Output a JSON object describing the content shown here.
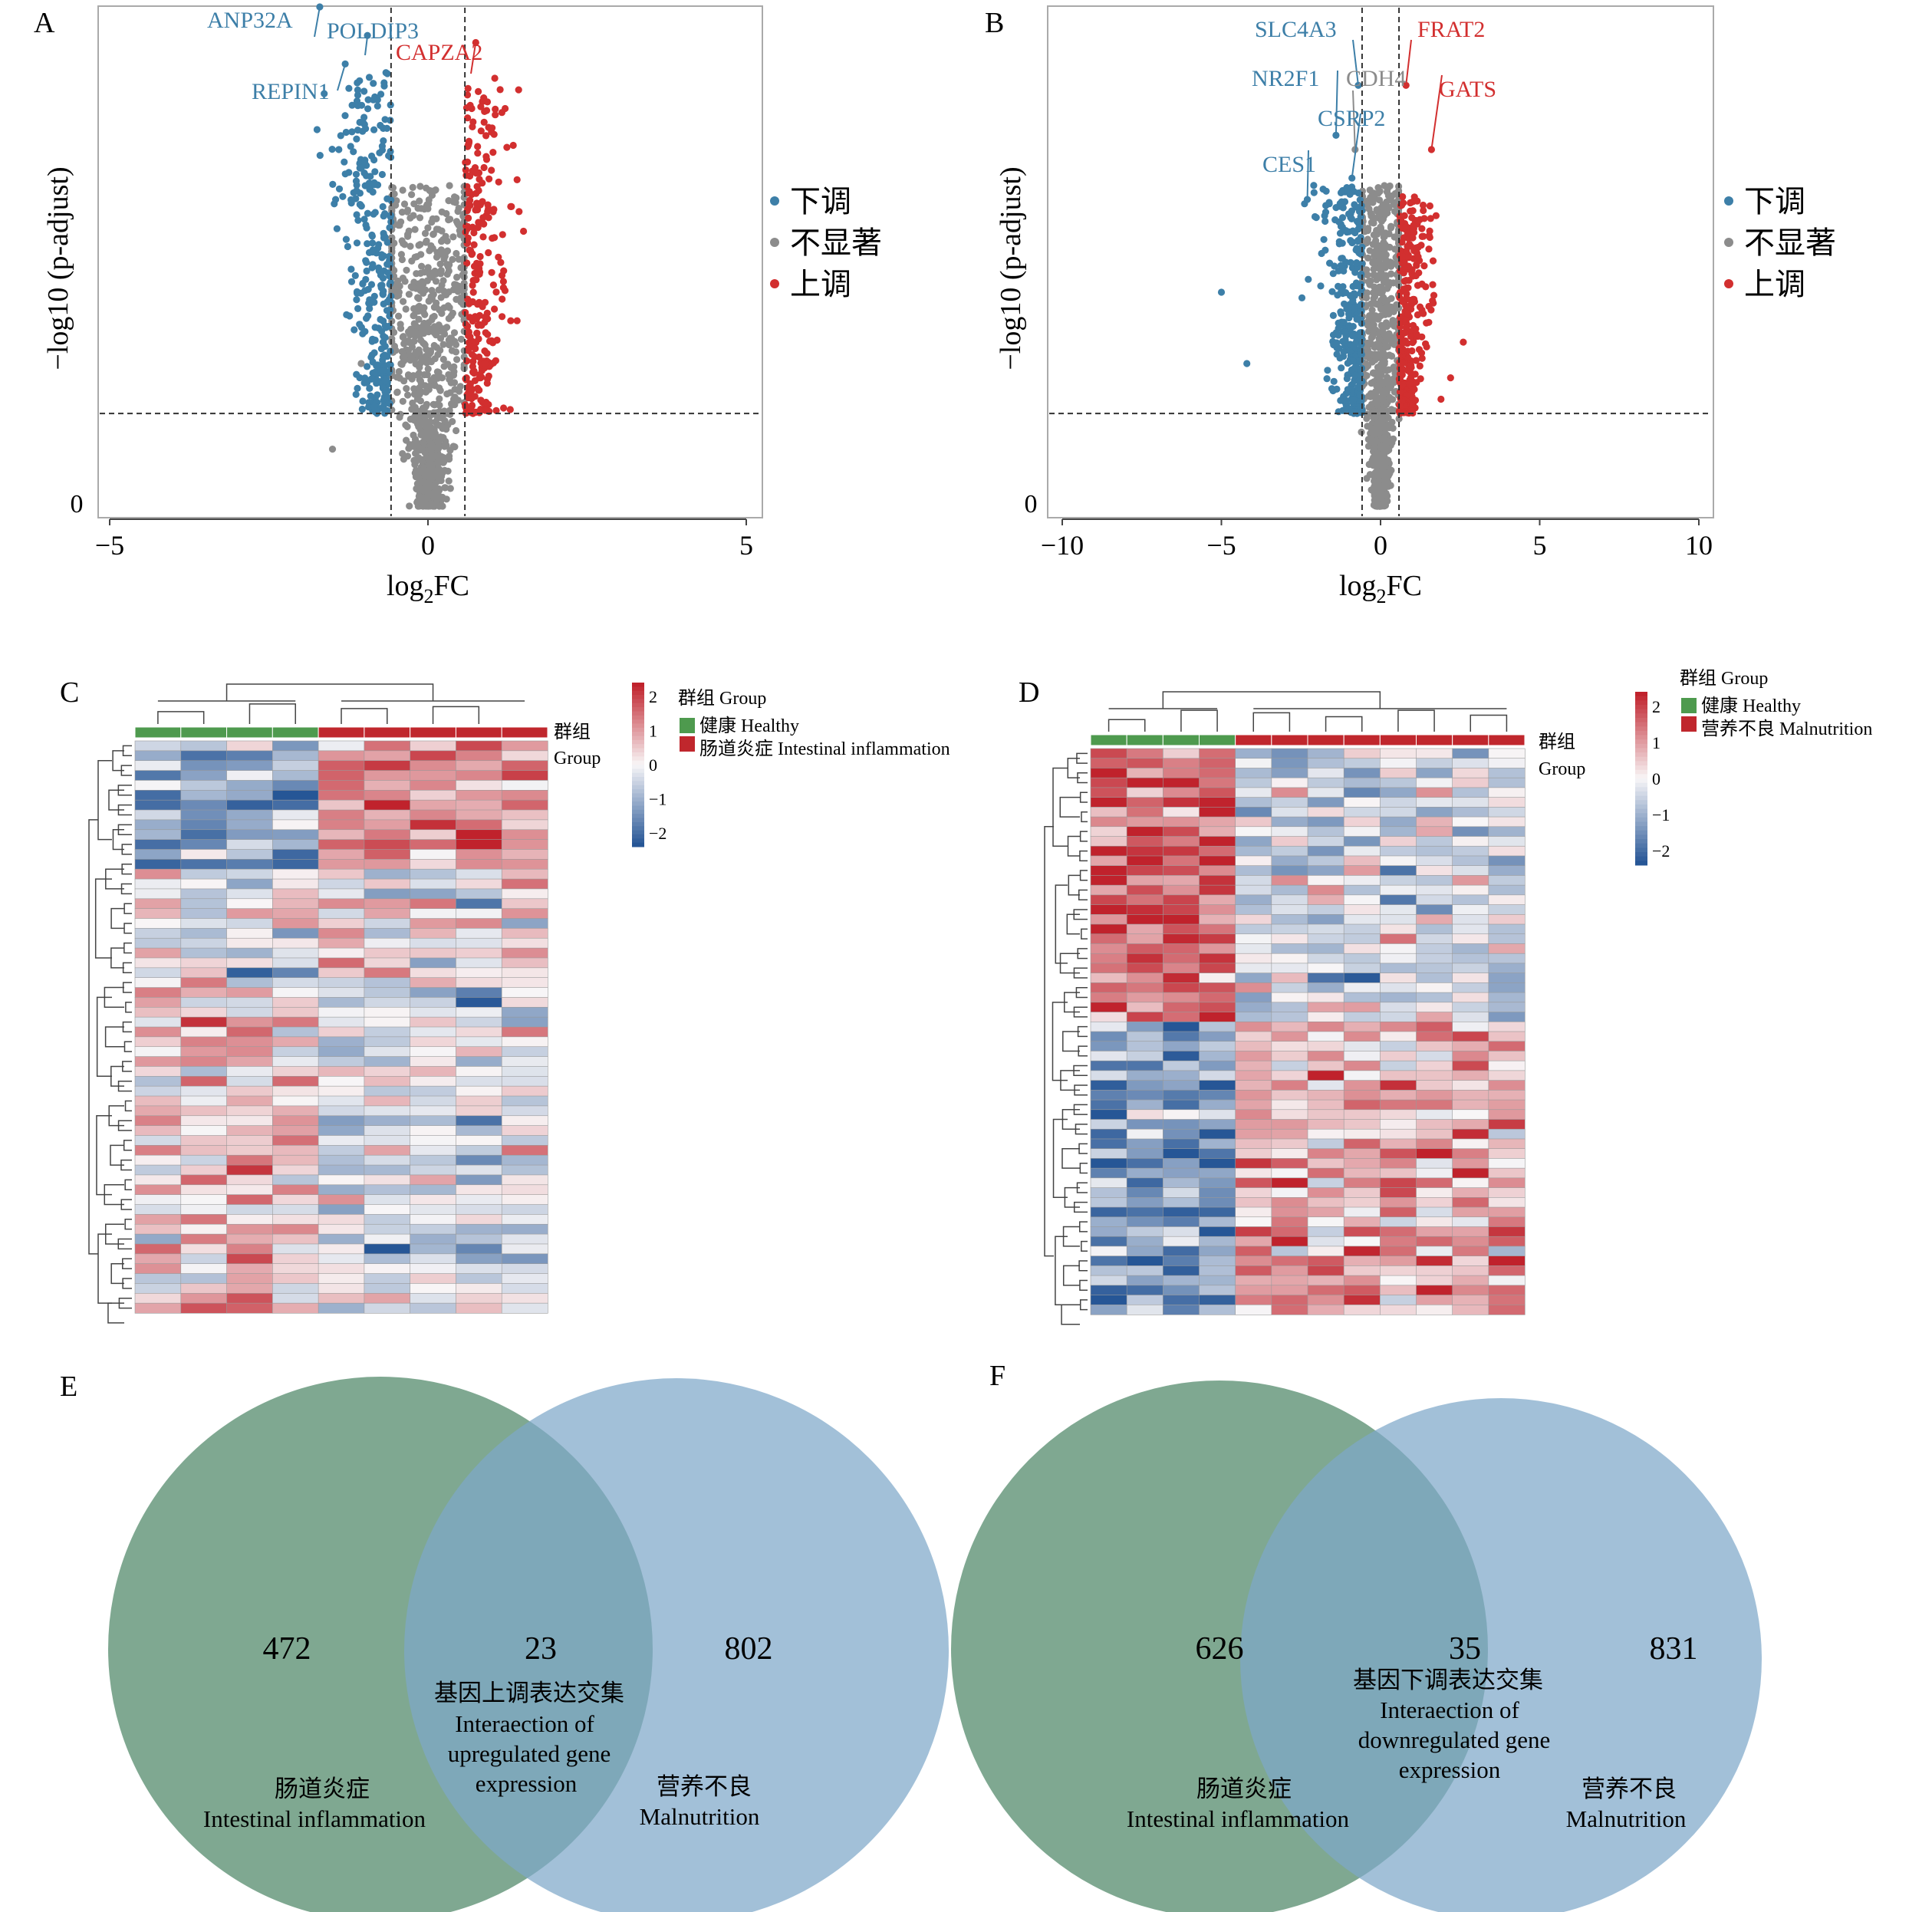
{
  "panel_letters": [
    "A",
    "B",
    "C",
    "D",
    "E",
    "F"
  ],
  "volcano_legend": {
    "down": "下调",
    "ns": "不显著",
    "up": "上调"
  },
  "heatmap_legend": {
    "group_cn": "群组",
    "group_en": "Group",
    "healthy": "健康 Healthy",
    "inflammation": "肠道炎症 Intestinal inflammation",
    "malnutrition": "营养不良 Malnutrition"
  },
  "colors": {
    "down": "#3d7fa8",
    "ns": "#8c8c8c",
    "up": "#d22f2f",
    "healthy": "#4e9a4e",
    "disease": "#c0272d",
    "venn_left": "#5b8f72",
    "venn_right": "#7ea7c9"
  },
  "chart_data": [
    {
      "panel": "A",
      "type": "scatter",
      "xlabel": "log2FC",
      "ylabel": "−log10 (p-adjust)",
      "xlim": [
        -5,
        5
      ],
      "xticks": [
        -5,
        0,
        5
      ],
      "yticks_labeled": [
        0
      ],
      "thresholds": {
        "log2fc": [
          -0.58,
          0.58
        ],
        "neg_log10_padj": 1.3
      },
      "series": [
        {
          "name": "下调",
          "n_plotted": 300
        },
        {
          "name": "不显著",
          "n_plotted": 950
        },
        {
          "name": "上调",
          "n_plotted": 260
        }
      ],
      "labeled_genes": [
        {
          "gene": "ANP32A",
          "group": "down",
          "x": -1.7,
          "y": 7.0
        },
        {
          "gene": "POLDIP3",
          "group": "down",
          "x": -0.95,
          "y": 6.6
        },
        {
          "gene": "REPIN1",
          "group": "down",
          "x": -1.3,
          "y": 6.2
        },
        {
          "gene": "CAPZA2",
          "group": "up",
          "x": 0.75,
          "y": 6.5
        }
      ]
    },
    {
      "panel": "B",
      "type": "scatter",
      "xlabel": "log2FC",
      "ylabel": "−log10 (p-adjust)",
      "xlim": [
        -10,
        10
      ],
      "xticks": [
        -10,
        -5,
        0,
        5,
        10
      ],
      "yticks_labeled": [
        0
      ],
      "thresholds": {
        "log2fc": [
          -0.58,
          0.58
        ],
        "neg_log10_padj": 1.3
      },
      "series": [
        {
          "name": "下调",
          "n_plotted": 320
        },
        {
          "name": "不显著",
          "n_plotted": 1100
        },
        {
          "name": "上调",
          "n_plotted": 300
        }
      ],
      "labeled_genes": [
        {
          "gene": "SLC4A3",
          "group": "down",
          "x": -0.7,
          "y": 5.9
        },
        {
          "gene": "FRAT2",
          "group": "up",
          "x": 0.8,
          "y": 5.9
        },
        {
          "gene": "NR2F1",
          "group": "down",
          "x": -1.4,
          "y": 5.2
        },
        {
          "gene": "CDH4",
          "group": "ns",
          "x": -0.8,
          "y": 5.0
        },
        {
          "gene": "GATS",
          "group": "up",
          "x": 1.6,
          "y": 5.0
        },
        {
          "gene": "CSRP2",
          "group": "down",
          "x": -0.9,
          "y": 4.6
        },
        {
          "gene": "CES1",
          "group": "down",
          "x": -2.3,
          "y": 4.3
        }
      ]
    },
    {
      "panel": "C",
      "type": "heatmap",
      "groups": [
        "健康 Healthy",
        "肠道炎症 Intestinal inflammation"
      ],
      "n_healthy": 4,
      "n_disease": 5,
      "n_genes": 58,
      "colorbar_ticks": [
        2,
        1,
        0,
        -1,
        -2
      ]
    },
    {
      "panel": "D",
      "type": "heatmap",
      "groups": [
        "健康 Healthy",
        "营养不良 Malnutrition"
      ],
      "n_healthy": 4,
      "n_disease": 8,
      "n_genes": 58,
      "colorbar_ticks": [
        2,
        1,
        0,
        -1,
        -2
      ]
    },
    {
      "panel": "E",
      "type": "venn",
      "left": {
        "label_cn": "肠道炎症",
        "label_en": "Intestinal inflammation",
        "count": 472
      },
      "right": {
        "label_cn": "营养不良",
        "label_en": "Malnutrition",
        "count": 802
      },
      "overlap": {
        "count": 23,
        "label_cn": "基因上调表达交集",
        "label_en": [
          "Interaection of",
          "upregulated gene",
          "expression"
        ]
      }
    },
    {
      "panel": "F",
      "type": "venn",
      "left": {
        "label_cn": "肠道炎症",
        "label_en": "Intestinal inflammation",
        "count": 626
      },
      "right": {
        "label_cn": "营养不良",
        "label_en": "Malnutrition",
        "count": 831
      },
      "overlap": {
        "count": 35,
        "label_cn": "基因下调表达交集",
        "label_en": [
          "Interaection of",
          "downregulated gene",
          "expression"
        ]
      }
    }
  ]
}
